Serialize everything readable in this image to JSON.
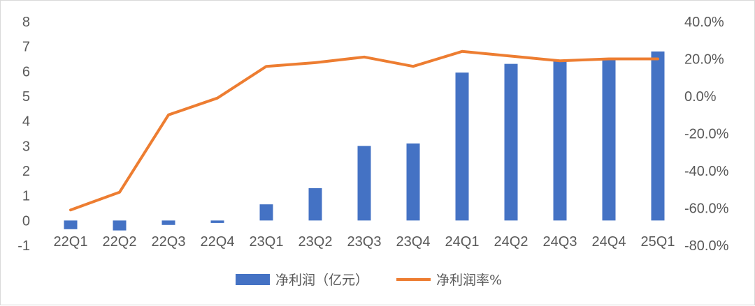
{
  "chart_data": {
    "type": "bar",
    "categories": [
      "22Q1",
      "22Q2",
      "22Q3",
      "22Q4",
      "23Q1",
      "23Q2",
      "23Q3",
      "23Q4",
      "24Q1",
      "24Q2",
      "24Q3",
      "24Q4",
      "25Q1"
    ],
    "series": [
      {
        "name": "净利润（亿元）",
        "type": "bar",
        "axis": "left",
        "color": "#4472C4",
        "values": [
          -0.35,
          -0.4,
          -0.18,
          -0.1,
          0.65,
          1.3,
          3.0,
          3.1,
          5.95,
          6.3,
          6.4,
          6.5,
          6.8
        ]
      },
      {
        "name": "净利润率%",
        "type": "line",
        "axis": "right",
        "color": "#ED7D31",
        "values": [
          -61.0,
          -51.5,
          -10.0,
          -1.0,
          16.0,
          18.0,
          21.0,
          16.0,
          24.0,
          21.5,
          19.0,
          20.0,
          20.0
        ]
      }
    ],
    "y_left": {
      "ylim": [
        -1,
        8
      ],
      "ticks": [
        "-1",
        "0",
        "1",
        "2",
        "3",
        "4",
        "5",
        "6",
        "7",
        "8"
      ]
    },
    "y_right": {
      "ylim": [
        -80,
        40
      ],
      "ticks": [
        "-80.0%",
        "-60.0%",
        "-40.0%",
        "-20.0%",
        "0.0%",
        "20.0%",
        "40.0%"
      ]
    },
    "legend": {
      "position": "bottom",
      "items": [
        "净利润（亿元）",
        "净利润率%"
      ]
    },
    "grid": false
  }
}
